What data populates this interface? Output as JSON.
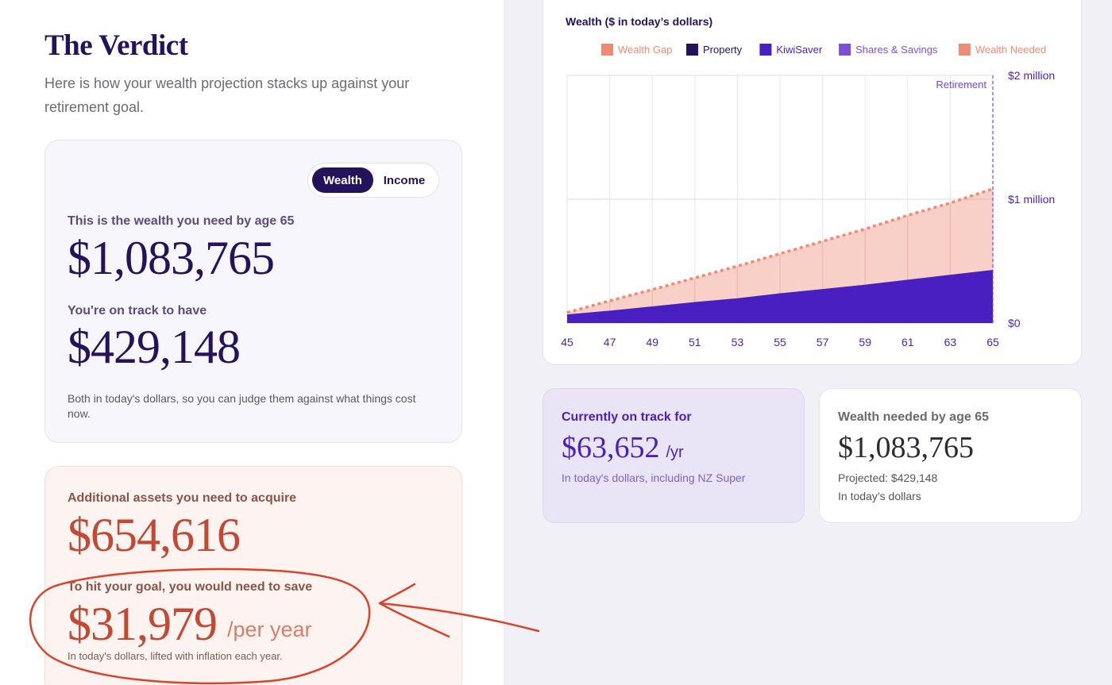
{
  "verdict": {
    "title": "The Verdict",
    "subtitle": "Here is how your wealth projection stacks up against your retirement goal."
  },
  "wealth_card": {
    "toggle": {
      "wealth_label": "Wealth",
      "income_label": "Income",
      "selected": "Wealth"
    },
    "needed_label": "This is the wealth you need by age 65",
    "needed_value": "$1,083,765",
    "on_track_label": "You're on track to have",
    "on_track_value": "$429,148",
    "note": "Both in today's dollars, so you can judge them against what things cost now."
  },
  "assets_card": {
    "acquire_label": "Additional assets you need to acquire",
    "acquire_value": "$654,616",
    "save_label": "To hit your goal, you would need to save",
    "save_value": "$31,979",
    "save_unit": "/per year",
    "note": "In today's dollars, lifted with inflation each year."
  },
  "colors": {
    "wealth_gap": "#f08a72",
    "property": "#24135a",
    "kiwisaver": "#4a1fc2",
    "shares_savings": "#7b52d6",
    "wealth_needed": "#f08a72",
    "accent_red": "#c24a34"
  },
  "chart_data": {
    "type": "area",
    "title": "Wealth ($ in today’s dollars)",
    "legend": [
      {
        "name": "Wealth Gap",
        "color": "#f08a72",
        "icon": "gap-swatch"
      },
      {
        "name": "Property",
        "color": "#24135a",
        "icon": "solid-swatch"
      },
      {
        "name": "KiwiSaver",
        "color": "#4a1fc2",
        "icon": "solid-swatch"
      },
      {
        "name": "Shares & Savings",
        "color": "#7b52d6",
        "icon": "solid-swatch"
      },
      {
        "name": "Wealth Needed",
        "color": "#f08a72",
        "icon": "dotted-swatch"
      }
    ],
    "legend_position": "top",
    "x": [
      45,
      47,
      49,
      51,
      53,
      55,
      57,
      59,
      61,
      63,
      65
    ],
    "x_ticks": [
      "45",
      "47",
      "49",
      "51",
      "53",
      "55",
      "57",
      "59",
      "61",
      "63",
      "65"
    ],
    "y_ticks": [
      {
        "value": 0,
        "label": "$0"
      },
      {
        "value": 1000000,
        "label": "$1 million"
      },
      {
        "value": 2000000,
        "label": "$2 million"
      }
    ],
    "ylim": [
      0,
      2000000
    ],
    "series": [
      {
        "name": "KiwiSaver",
        "values": [
          70000,
          100000,
          135000,
          170000,
          200000,
          240000,
          275000,
          310000,
          350000,
          390000,
          429148
        ]
      },
      {
        "name": "Wealth Needed",
        "values": [
          85000,
          180000,
          270000,
          365000,
          460000,
          560000,
          660000,
          760000,
          870000,
          970000,
          1083765
        ]
      }
    ],
    "retirement_marker": {
      "x": 65,
      "label": "Retirement"
    },
    "grid": true
  },
  "stats": {
    "on_track_label": "Currently on track for",
    "on_track_value": "$63,652",
    "on_track_unit": "/yr",
    "on_track_note": "In today's dollars, including NZ Super",
    "needed_label": "Wealth needed by age 65",
    "needed_value": "$1,083,765",
    "projected_note": "Projected: $429,148",
    "needed_note": "In today’s dollars"
  }
}
